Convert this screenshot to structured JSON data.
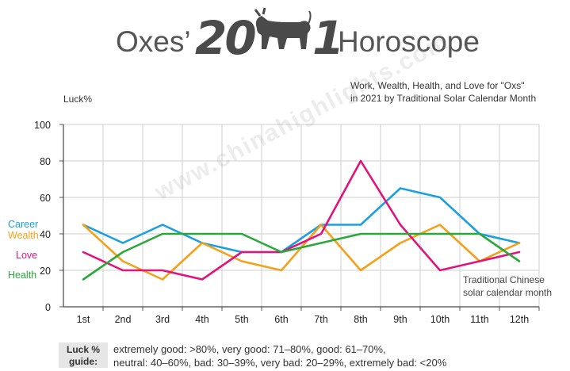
{
  "header": {
    "title_left": "Oxes’",
    "title_year_a": "20",
    "title_year_b": "1",
    "title_right": "Horoscope"
  },
  "chart_data": {
    "type": "line",
    "subtitle_line1": "Work, Wealth, Health, and Love for \"Oxs\"",
    "subtitle_line2": "in 2021 by Traditional Solar Calendar Month",
    "ylabel": "Luck%",
    "xnote_line1": "Traditional Chinese",
    "xnote_line2": "solar calendar month",
    "categories": [
      "1st",
      "2nd",
      "3rd",
      "4th",
      "5th",
      "6th",
      "7th",
      "8th",
      "9th",
      "10th",
      "11th",
      "12th"
    ],
    "ylim": [
      0,
      100
    ],
    "yticks": [
      0,
      20,
      40,
      60,
      80,
      100
    ],
    "grid": true,
    "series": [
      {
        "name": "Career",
        "color": "#1aa0e0",
        "values": [
          45,
          35,
          45,
          35,
          30,
          30,
          45,
          45,
          65,
          60,
          40,
          35
        ]
      },
      {
        "name": "Wealth",
        "color": "#f5a01a",
        "values": [
          45,
          25,
          15,
          35,
          25,
          20,
          45,
          20,
          35,
          45,
          25,
          35
        ]
      },
      {
        "name": "Love",
        "color": "#e0147a",
        "values": [
          30,
          20,
          20,
          15,
          30,
          30,
          40,
          80,
          45,
          20,
          25,
          30
        ]
      },
      {
        "name": "Health",
        "color": "#2aa83a",
        "values": [
          15,
          30,
          40,
          40,
          40,
          30,
          35,
          40,
          40,
          40,
          40,
          25
        ]
      }
    ]
  },
  "watermark": "www.chinahighlights.com",
  "guide": {
    "label_line1": "Luck %",
    "label_line2": "guide:",
    "line1": "extremely good: >80%, very good: 71–80%, good: 61–70%,",
    "line2": "neutral: 40–60%, bad: 30–39%, very bad: 20–29%, extremely bad: <20%"
  }
}
